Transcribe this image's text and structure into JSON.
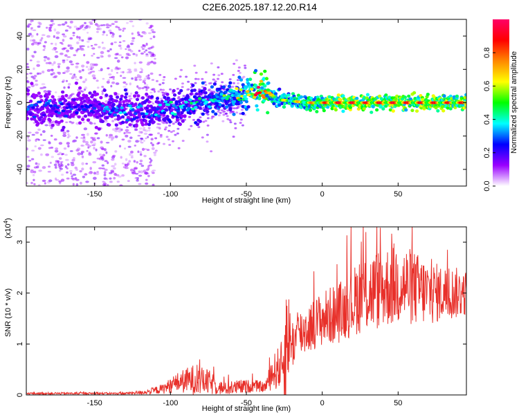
{
  "title": "C2E6.2025.187.12.20.R14",
  "chart_data": [
    {
      "type": "heatmap",
      "xlabel": "Height of straight line (km)",
      "ylabel": "Frequency (Hz)",
      "xlim": [
        -195,
        95
      ],
      "ylim": [
        -50,
        50
      ],
      "xticks": [
        -150,
        -100,
        -50,
        0,
        50
      ],
      "yticks": [
        -40,
        -20,
        0,
        20,
        40
      ],
      "colorbar": {
        "label": "Normalized spectral amplitude",
        "range": [
          0,
          1
        ],
        "ticks": [
          0.0,
          0.2,
          0.4,
          0.6,
          0.8
        ],
        "tick_labels": [
          "0.0",
          "0.2",
          "0.4",
          "0.6",
          "0.8"
        ],
        "colors": [
          "#ffffff",
          "#9900ff",
          "#0000ff",
          "#00ffff",
          "#00ff00",
          "#ffff00",
          "#ff8800",
          "#ff0000",
          "#ff0066"
        ]
      },
      "ridge": {
        "x": [
          -195,
          -170,
          -150,
          -130,
          -110,
          -100,
          -90,
          -80,
          -70,
          -60,
          -50,
          -45,
          -40,
          -35,
          -30,
          -20,
          -10,
          0,
          10,
          20,
          30,
          40,
          50,
          60,
          70,
          80,
          95
        ],
        "frequency": [
          -3,
          -4,
          -3,
          -4,
          -5,
          -4,
          -2,
          0,
          2,
          4,
          6,
          7,
          7,
          6,
          2,
          1,
          0,
          0,
          0,
          0,
          0,
          0,
          0,
          0,
          0,
          0,
          0
        ],
        "amplitude": [
          0.25,
          0.25,
          0.25,
          0.3,
          0.3,
          0.35,
          0.35,
          0.4,
          0.45,
          0.5,
          0.6,
          0.7,
          0.85,
          0.75,
          0.6,
          0.7,
          0.75,
          0.85,
          0.95,
          0.95,
          0.9,
          0.95,
          0.95,
          0.9,
          0.95,
          0.9,
          0.9
        ]
      }
    },
    {
      "type": "line",
      "xlabel": "Height of straight line (km)",
      "ylabel": "SNR (10 * v/v)",
      "y_scale_label": "(x10",
      "y_scale_exponent": "4",
      "xlim": [
        -195,
        95
      ],
      "ylim": [
        0,
        3.3
      ],
      "xticks": [
        -150,
        -100,
        -50,
        0,
        50
      ],
      "yticks": [
        0,
        1,
        2,
        3
      ],
      "series": [
        {
          "color": "#e8302a",
          "envelope": {
            "x": [
              -195,
              -130,
              -115,
              -105,
              -95,
              -85,
              -75,
              -65,
              -55,
              -45,
              -38,
              -32,
              -26,
              -24,
              -22,
              -20,
              -15,
              -10,
              -5,
              0,
              10,
              20,
              25,
              30,
              40,
              50,
              60,
              70,
              80,
              90,
              95
            ],
            "mean": [
              0.03,
              0.03,
              0.06,
              0.12,
              0.25,
              0.3,
              0.25,
              0.12,
              0.15,
              0.18,
              0.15,
              0.45,
              0.6,
              1.0,
              1.2,
              1.0,
              1.2,
              1.3,
              1.4,
              1.5,
              1.6,
              1.8,
              2.0,
              2.0,
              2.1,
              2.2,
              2.1,
              2.0,
              2.0,
              2.0,
              2.0
            ],
            "spread": [
              0.02,
              0.02,
              0.05,
              0.1,
              0.2,
              0.3,
              0.25,
              0.12,
              0.15,
              0.12,
              0.1,
              0.35,
              0.5,
              1.4,
              0.8,
              0.5,
              0.5,
              0.5,
              0.5,
              0.55,
              0.6,
              0.65,
              0.8,
              0.8,
              0.8,
              0.85,
              0.75,
              0.65,
              0.55,
              0.5,
              0.45
            ]
          }
        }
      ]
    }
  ]
}
